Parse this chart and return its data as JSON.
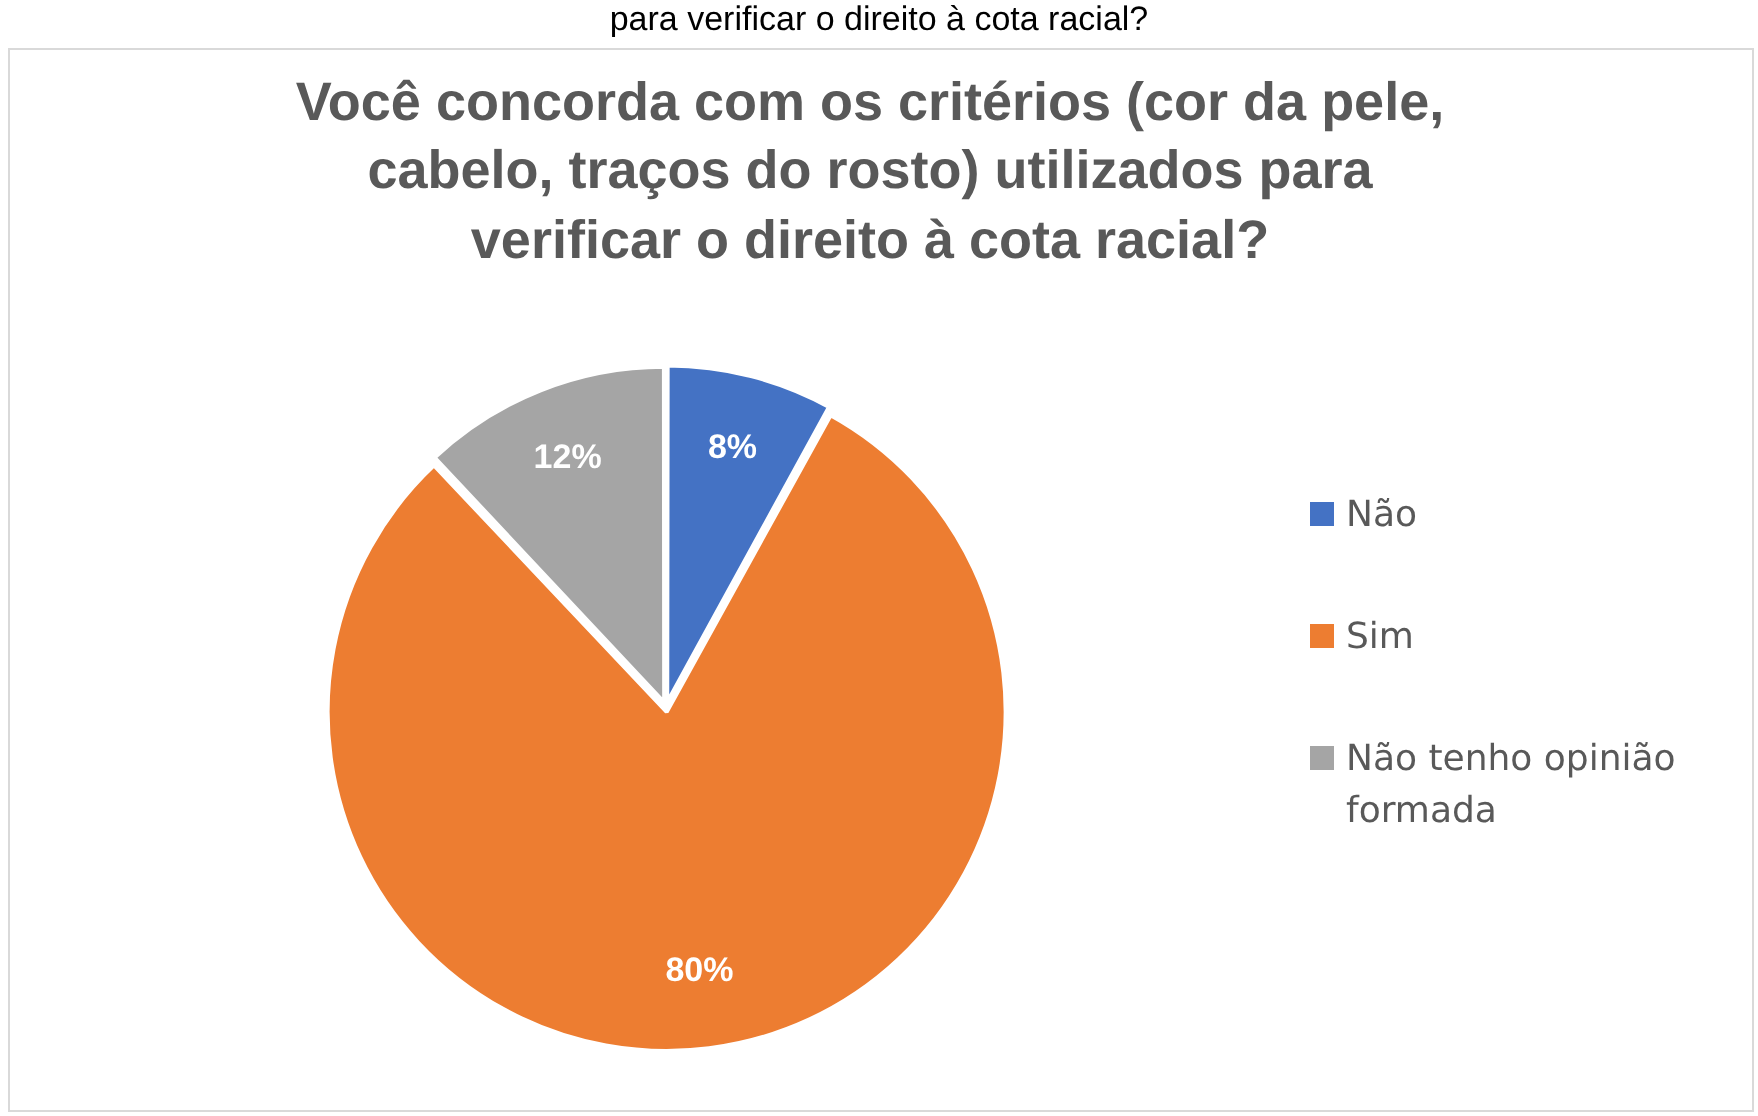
{
  "chart_data": {
    "type": "pie",
    "title": "Você concorda com os critérios (cor da pele, cabelo, traços do rosto) utilizados para verificar o direito à cota racial?",
    "annotations": [
      "para verificar o direito à cota racial?"
    ],
    "categories": [
      "Não",
      "Sim",
      "Não tenho opinião formada"
    ],
    "values": [
      8,
      80,
      12
    ],
    "colors": [
      "#4472c4",
      "#ed7d31",
      "#a5a5a5"
    ],
    "value_labels": [
      "8%",
      "80%",
      "12%"
    ],
    "legend": "right"
  }
}
